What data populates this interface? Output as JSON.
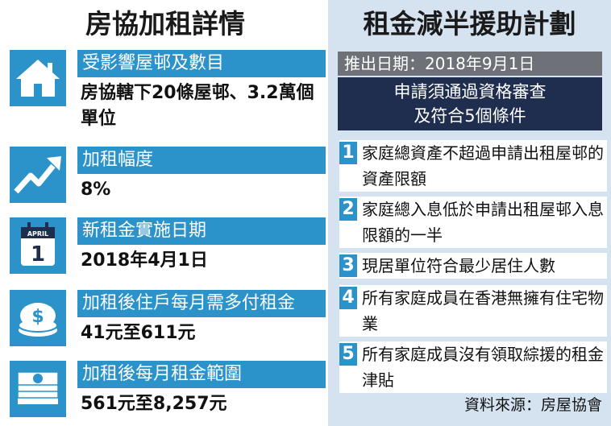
{
  "left": {
    "title": "房協加租詳情",
    "items": [
      {
        "icon": "house-icon",
        "label": "受影響屋邨及數目",
        "value": "房協轄下20條屋邨、3.2萬個單位"
      },
      {
        "icon": "rising-arrow-icon",
        "label": "加租幅度",
        "value": "8%"
      },
      {
        "icon": "calendar-icon",
        "label": "新租金實施日期",
        "value": "2018年4月1日",
        "calendar_month": "APRIL",
        "calendar_day": "1"
      },
      {
        "icon": "dollar-coins-icon",
        "label": "加租後住戶每月需多付租金",
        "value": "41元至611元"
      },
      {
        "icon": "banknotes-icon",
        "label": "加租後每月租金範圍",
        "value": "561元至8,257元"
      }
    ]
  },
  "right": {
    "title": "租金減半援助計劃",
    "launch_date": "推出日期：2018年9月1日",
    "requirement_line1": "申請須通過資格審查",
    "requirement_line2": "及符合5個條件",
    "conditions": [
      {
        "num": "1",
        "text": "家庭總資產不超過申請出租屋邨的資產限額"
      },
      {
        "num": "2",
        "text": "家庭總入息低於申請出租屋邨入息限額的一半"
      },
      {
        "num": "3",
        "text": "現居單位符合最少居住人數"
      },
      {
        "num": "4",
        "text": "所有家庭成員在香港無擁有住宅物業"
      },
      {
        "num": "5",
        "text": "所有家庭成員沒有領取綜援的租金津貼"
      }
    ],
    "source": "資料來源：房屋協會"
  },
  "colors": {
    "accent": "#2b93ca",
    "navy": "#1f2d4e",
    "gray": "#6e7278",
    "panel": "#d5e3f1"
  }
}
